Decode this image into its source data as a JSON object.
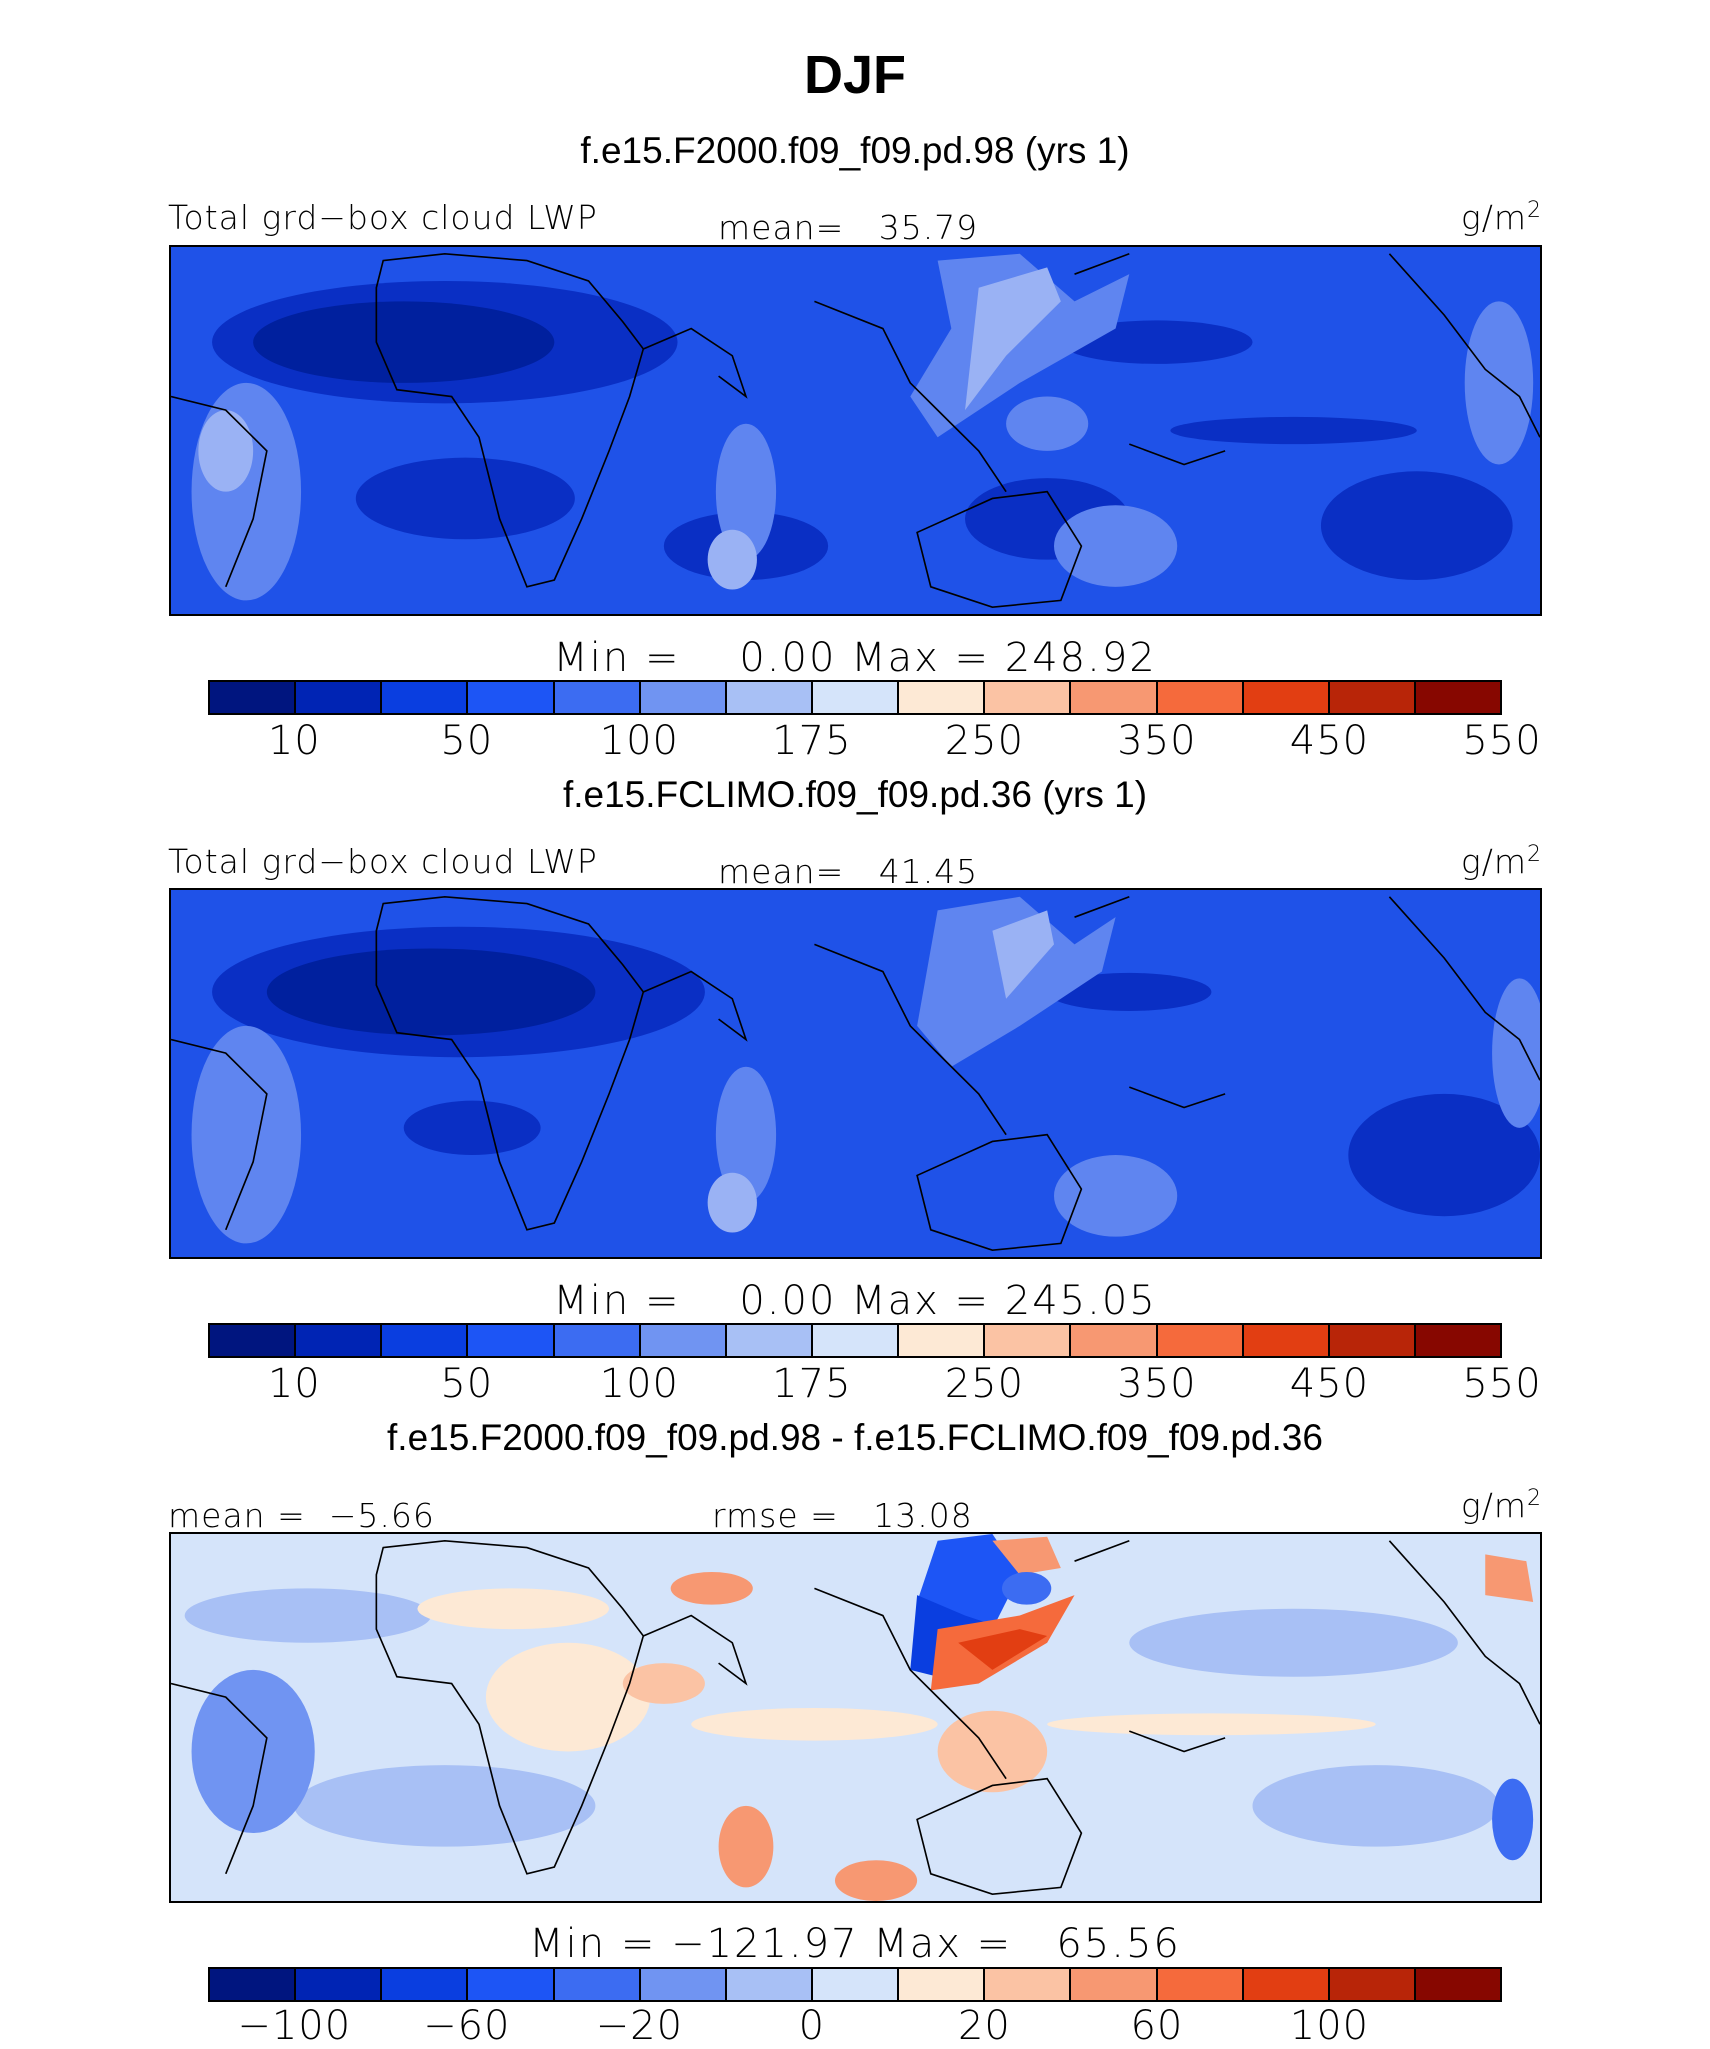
{
  "season": "DJF",
  "units": "g/m",
  "units_sup": "2",
  "panels": [
    {
      "title": "f.e15.F2000.f09_f09.pd.98 (yrs 1)",
      "left_label": "Total grd−box cloud LWP",
      "center_label": "mean=   35.79",
      "minmax": "Min =    0.00 Max = 248.92"
    },
    {
      "title": "f.e15.FCLIMO.f09_f09.pd.36 (yrs 1)",
      "left_label": "Total grd−box cloud LWP",
      "center_label": "mean=   41.45",
      "minmax": "Min =    0.00 Max = 245.05"
    },
    {
      "title": "f.e15.F2000.f09_f09.pd.98 - f.e15.FCLIMO.f09_f09.pd.36",
      "left_label": "mean =  −5.66",
      "center_label": "rmse =   13.08",
      "minmax": "Min = −121.97 Max =   65.56"
    }
  ],
  "colorbar_abs": {
    "colors": [
      "#00157f",
      "#0024b4",
      "#0a3ee0",
      "#1d55f5",
      "#3c6cf2",
      "#7094f2",
      "#a8c0f5",
      "#d5e4fa",
      "#fde9d5",
      "#fbc3a4",
      "#f79872",
      "#f56a3c",
      "#e23e12",
      "#b82508",
      "#870700"
    ],
    "ticks": [
      "10",
      "50",
      "100",
      "175",
      "250",
      "350",
      "450",
      "550"
    ]
  },
  "colorbar_diff": {
    "colors": [
      "#00157f",
      "#0024b4",
      "#0a3ee0",
      "#1d55f5",
      "#3c6cf2",
      "#7094f2",
      "#a8c0f5",
      "#d5e4fa",
      "#fde9d5",
      "#fbc3a4",
      "#f79872",
      "#f56a3c",
      "#e23e12",
      "#b82508",
      "#870700"
    ],
    "ticks": [
      "−100",
      "−60",
      "−20",
      "0",
      "20",
      "60",
      "100"
    ]
  }
}
